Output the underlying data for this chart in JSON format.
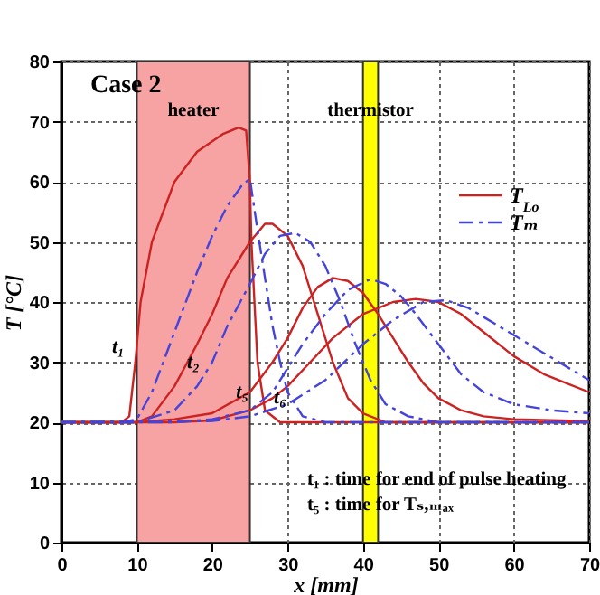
{
  "chart_data": {
    "type": "line",
    "xlabel": "x [mm]",
    "ylabel": "T [°C]",
    "xlim": [
      0,
      70
    ],
    "ylim": [
      0,
      80
    ],
    "xticks": [
      0,
      10,
      20,
      30,
      40,
      50,
      60,
      70
    ],
    "yticks": [
      0,
      10,
      20,
      30,
      40,
      50,
      60,
      70,
      80
    ],
    "grid": true,
    "legend": "top right",
    "marker": "none",
    "series": [
      {
        "name": "T$_{Lo}$",
        "color": "#cc2222",
        "line_style": "solid",
        "x": [
          0,
          8,
          9,
          9.8,
          10.5,
          12,
          15,
          18,
          21.5,
          23.5,
          24.5,
          25,
          25.2,
          26,
          27,
          29,
          70
        ],
        "values": [
          20,
          20,
          21,
          30,
          40,
          50,
          60,
          65,
          68,
          69,
          68.5,
          60,
          50,
          30,
          22,
          20,
          20
        ]
      },
      {
        "color": "#cc2222",
        "line_style": "solid",
        "x": [
          0,
          10,
          12,
          15,
          18,
          20,
          22,
          25,
          27,
          28,
          30,
          32,
          34,
          36,
          38,
          40,
          43,
          70
        ],
        "values": [
          20,
          20,
          21,
          26,
          33,
          38,
          44,
          50,
          53,
          53,
          51,
          46,
          38,
          30,
          24,
          21.5,
          20,
          20
        ]
      },
      {
        "color": "#cc2222",
        "line_style": "solid",
        "x": [
          0,
          10,
          15,
          20,
          25,
          28,
          30,
          32,
          34,
          36,
          38,
          40,
          42,
          44,
          46,
          48,
          50,
          53,
          56,
          60,
          70
        ],
        "values": [
          20,
          20,
          20.5,
          21.5,
          25,
          30,
          34,
          39,
          42.5,
          44,
          43.5,
          41.5,
          38,
          34,
          30,
          26.5,
          24,
          22,
          21,
          20.5,
          20.2
        ]
      },
      {
        "color": "#cc2222",
        "line_style": "solid",
        "x": [
          0,
          15,
          20,
          25,
          28,
          30,
          33,
          36,
          40,
          44,
          47,
          50,
          53,
          56,
          60,
          64,
          67,
          70
        ],
        "values": [
          20,
          20,
          20.3,
          22,
          24,
          26,
          30,
          34,
          38,
          40,
          40.5,
          40,
          38,
          35,
          31,
          28,
          26.5,
          25
        ]
      },
      {
        "name": "Tₘ",
        "color": "#4444dd",
        "line_style": "dashed",
        "x": [
          0,
          8,
          10,
          12,
          15,
          18,
          20,
          22,
          24,
          25,
          26,
          27,
          28,
          29,
          30,
          32,
          35,
          70
        ],
        "values": [
          20,
          20,
          20.5,
          25,
          35,
          45,
          51,
          56,
          59.5,
          60.5,
          52,
          44,
          36,
          30,
          25,
          21,
          20,
          20
        ]
      },
      {
        "color": "#4444dd",
        "line_style": "dashed",
        "x": [
          0,
          10,
          15,
          18,
          20,
          22,
          25,
          27,
          29,
          31,
          33,
          35,
          37,
          39,
          41,
          43,
          46,
          50,
          70
        ],
        "values": [
          20,
          20,
          22,
          26,
          30,
          36,
          43,
          48,
          51,
          51.5,
          50,
          46,
          40,
          33,
          27,
          23,
          21,
          20,
          20
        ]
      },
      {
        "color": "#4444dd",
        "line_style": "dashed",
        "x": [
          0,
          15,
          20,
          25,
          28,
          30,
          32,
          35,
          38,
          41,
          43,
          45,
          47,
          50,
          53,
          56,
          60,
          65,
          70
        ],
        "values": [
          20,
          20,
          20.5,
          22,
          25,
          29,
          33,
          38,
          42,
          43.8,
          43,
          41,
          38,
          33,
          28,
          25,
          23,
          22,
          21.5
        ]
      },
      {
        "color": "#4444dd",
        "line_style": "dashed",
        "x": [
          0,
          20,
          25,
          30,
          35,
          40,
          44,
          48,
          51,
          54,
          58,
          62,
          66,
          70
        ],
        "values": [
          20,
          20.2,
          21,
          23,
          27,
          33,
          37,
          40,
          40.3,
          39,
          36,
          33,
          30,
          27
        ]
      }
    ],
    "bands": [
      {
        "axis": "x",
        "from": 10,
        "to": 25,
        "label": "heater",
        "color": "#f7a3a3"
      },
      {
        "axis": "x",
        "from": 40,
        "to": 42,
        "label": "thermistor",
        "color": "#ffff00"
      }
    ],
    "annotations": [
      "Case 2",
      "t₁",
      {
        "text": "t₂",
        "x": 17.5,
        "y": 30
      },
      {
        "text": "t₅",
        "x": 24,
        "y": 25
      },
      {
        "text": "t₆",
        "x": 29,
        "y": 24
      },
      "t₁ : time for end of pulse heating",
      "t₅ : time for Tₛ,ₘₐₓ"
    ]
  }
}
